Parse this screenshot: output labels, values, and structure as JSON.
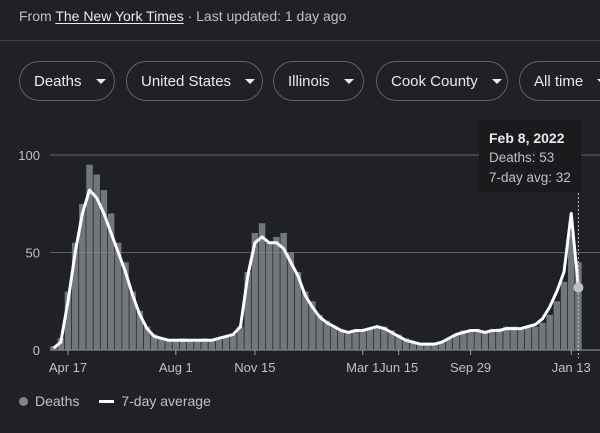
{
  "source": {
    "prefix": "From",
    "publisher": "The New York Times",
    "updated": "· Last updated: 1 day ago"
  },
  "filters": [
    {
      "label": "Deaths"
    },
    {
      "label": "United States"
    },
    {
      "label": "Illinois"
    },
    {
      "label": "Cook County"
    },
    {
      "label": "All time"
    }
  ],
  "tooltip": {
    "date": "Feb 8, 2022",
    "deaths": "Deaths: 53",
    "avg": "7-day avg: 32"
  },
  "legend": {
    "bars_label": "Deaths",
    "line_label": "7-day average"
  },
  "colors": {
    "background": "#202124",
    "bars": "#80868b",
    "line": "#ffffff",
    "grid": "#5f6368"
  },
  "chart_data": {
    "type": "bar",
    "title": "",
    "xlabel": "",
    "ylabel": "",
    "ylim": [
      0,
      100
    ],
    "y_ticks": [
      0,
      50,
      100
    ],
    "x_ticks": [
      "Apr 17",
      "Aug 1",
      "Nov 15",
      "Mar 1",
      "Jun 15",
      "Sep 29",
      "Jan 13"
    ],
    "grid": true,
    "legend_position": "bottom-left",
    "series": [
      {
        "name": "Deaths",
        "kind": "bar",
        "sampled_every_days": 7,
        "values": [
          2,
          6,
          30,
          55,
          75,
          95,
          90,
          82,
          70,
          55,
          45,
          30,
          20,
          12,
          8,
          6,
          5,
          5,
          6,
          5,
          5,
          6,
          5,
          6,
          7,
          8,
          12,
          40,
          60,
          65,
          55,
          58,
          60,
          50,
          40,
          30,
          25,
          18,
          15,
          12,
          10,
          9,
          10,
          10,
          11,
          12,
          12,
          10,
          8,
          6,
          4,
          3,
          3,
          3,
          4,
          6,
          8,
          10,
          10,
          10,
          9,
          10,
          11,
          12,
          12,
          11,
          12,
          12,
          14,
          18,
          25,
          35,
          60,
          45
        ]
      },
      {
        "name": "7-day average",
        "kind": "line",
        "sampled_every_days": 7,
        "values": [
          1,
          4,
          25,
          50,
          70,
          82,
          78,
          70,
          60,
          50,
          40,
          28,
          18,
          11,
          7,
          6,
          5,
          5,
          5,
          5,
          5,
          5,
          5,
          6,
          7,
          8,
          12,
          38,
          55,
          58,
          55,
          55,
          52,
          45,
          38,
          28,
          22,
          17,
          14,
          12,
          10,
          9,
          10,
          10,
          11,
          12,
          11,
          9,
          7,
          5,
          4,
          3,
          3,
          3,
          4,
          6,
          8,
          9,
          10,
          10,
          9,
          10,
          10,
          11,
          11,
          11,
          12,
          13,
          16,
          22,
          30,
          40,
          70,
          32
        ]
      }
    ]
  }
}
